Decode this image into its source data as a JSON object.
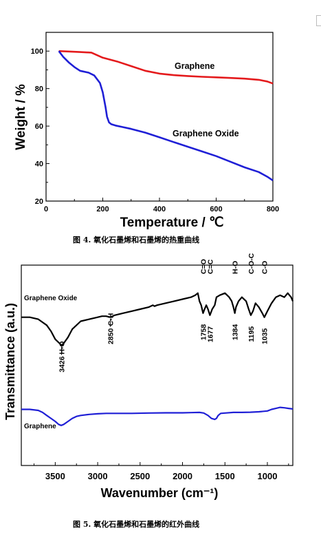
{
  "figure1": {
    "caption": "图 4.   氧化石墨烯和石墨烯的热重曲线",
    "chart_data": {
      "type": "line",
      "xlabel": "Temperature / ℃",
      "ylabel": "Weight / %",
      "xlim": [
        0,
        800
      ],
      "ylim": [
        20,
        110
      ],
      "xticks": [
        "0",
        "200",
        "400",
        "600",
        "800"
      ],
      "yticks": [
        "20",
        "40",
        "60",
        "80",
        "100"
      ],
      "series": [
        {
          "name": "Graphene",
          "color": "#e41a1c",
          "x": [
            45,
            80,
            120,
            160,
            200,
            250,
            300,
            350,
            400,
            450,
            500,
            550,
            600,
            650,
            700,
            750,
            780,
            800
          ],
          "y": [
            100,
            99.8,
            99.5,
            99.2,
            96.5,
            94.5,
            92.0,
            89.5,
            88.0,
            87.2,
            86.7,
            86.3,
            86.0,
            85.7,
            85.3,
            84.7,
            83.8,
            82.7
          ]
        },
        {
          "name": "Graphene Oxide",
          "color": "#1f1fd6",
          "x": [
            45,
            60,
            80,
            100,
            120,
            150,
            170,
            190,
            200,
            210,
            215,
            222,
            230,
            245,
            270,
            300,
            350,
            400,
            450,
            500,
            550,
            600,
            650,
            700,
            750,
            780,
            800
          ],
          "y": [
            100,
            97,
            94,
            91.5,
            89.5,
            88.5,
            87,
            83,
            78,
            70,
            65,
            62,
            61,
            60.3,
            59.5,
            58.5,
            56.5,
            54.0,
            51.5,
            49.0,
            46.5,
            44.0,
            41.0,
            38.0,
            35.5,
            33.0,
            31.0
          ]
        }
      ]
    }
  },
  "figure2": {
    "caption": "图 5.   氧化石墨烯和石墨烯的红外曲线",
    "chart_data": {
      "type": "line",
      "xlabel": "Wavenumber (cm⁻¹)",
      "ylabel": "Transmittance (a.u.)",
      "xlim": [
        3900,
        700
      ],
      "x_reversed": true,
      "xticks": [
        "3500",
        "3000",
        "2500",
        "2000",
        "1500",
        "1000"
      ],
      "series_labels": [
        "Graphene Oxide",
        "Graphene"
      ],
      "annotations": [
        {
          "group": "H-O",
          "wavenumber": "3426"
        },
        {
          "group": "C-H",
          "wavenumber": "2850"
        },
        {
          "group": "C=O",
          "wavenumber": "1758"
        },
        {
          "group": "C=C",
          "wavenumber": "1677"
        },
        {
          "group": "H-O",
          "wavenumber": "1384"
        },
        {
          "group": "C-O-C",
          "wavenumber": "1195"
        },
        {
          "group": "C-O",
          "wavenumber": "1035"
        }
      ],
      "series": [
        {
          "name": "Graphene Oxide",
          "color": "#000000",
          "x": [
            3900,
            3800,
            3700,
            3600,
            3550,
            3500,
            3450,
            3426,
            3400,
            3350,
            3300,
            3200,
            3100,
            3000,
            2950,
            2900,
            2850,
            2800,
            2700,
            2600,
            2500,
            2400,
            2350,
            2330,
            2300,
            2200,
            2100,
            2000,
            1900,
            1850,
            1820,
            1800,
            1780,
            1758,
            1740,
            1720,
            1700,
            1677,
            1650,
            1620,
            1600,
            1560,
            1500,
            1450,
            1420,
            1400,
            1384,
            1370,
            1340,
            1300,
            1250,
            1220,
            1195,
            1170,
            1140,
            1100,
            1060,
            1035,
            1000,
            950,
            900,
            850,
            800,
            760,
            720,
            700
          ],
          "y": [
            74,
            74,
            73,
            70,
            67,
            63,
            61,
            60,
            61,
            64,
            68,
            72,
            73,
            74,
            74.5,
            74.5,
            74,
            75,
            76,
            77,
            78,
            79,
            80,
            79.5,
            80,
            81,
            82,
            83,
            84,
            85,
            86,
            82,
            80,
            76,
            78,
            80,
            78,
            75,
            78,
            80,
            84,
            85,
            86,
            84,
            82,
            79,
            76,
            79,
            82,
            84,
            82,
            78,
            75,
            77,
            81,
            79,
            76,
            74,
            77,
            81,
            84,
            85,
            84,
            86,
            84,
            82
          ]
        },
        {
          "name": "Graphene",
          "color": "#1f1fd6",
          "x": [
            3900,
            3800,
            3700,
            3650,
            3600,
            3550,
            3500,
            3460,
            3430,
            3400,
            3350,
            3300,
            3250,
            3200,
            3100,
            3000,
            2900,
            2800,
            2600,
            2400,
            2200,
            2000,
            1900,
            1800,
            1750,
            1700,
            1660,
            1620,
            1600,
            1580,
            1550,
            1500,
            1400,
            1300,
            1200,
            1100,
            1000,
            950,
            900,
            850,
            800,
            750,
            700
          ],
          "y": [
            28,
            28,
            27.5,
            26.5,
            25,
            23.5,
            22,
            20.5,
            20,
            20.5,
            22,
            23.5,
            24.5,
            25,
            25.5,
            25.8,
            26,
            26,
            26,
            26.2,
            26.3,
            26.3,
            26.4,
            26.5,
            26.2,
            25,
            23.5,
            23,
            23.5,
            25,
            26,
            26.2,
            26.5,
            26.5,
            26.6,
            26.8,
            27.2,
            28,
            28.5,
            29,
            28.8,
            28.5,
            28.2
          ]
        }
      ]
    }
  }
}
